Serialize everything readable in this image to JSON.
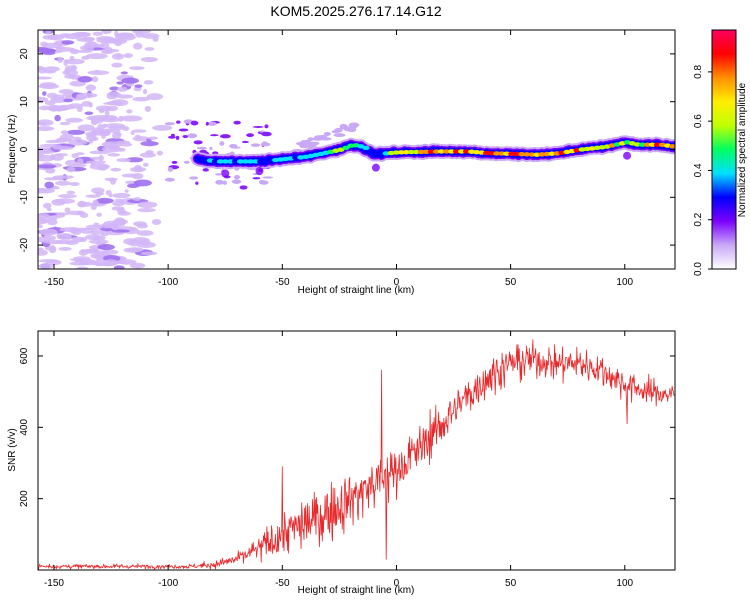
{
  "title": "KOM5.2025.276.17.14.G12",
  "chart_data": [
    {
      "type": "heatmap",
      "xlabel": "Height of straight line (km)",
      "ylabel": "Frequency (Hz)",
      "xlim": [
        -157,
        122
      ],
      "ylim": [
        -25,
        25
      ],
      "xticks": [
        -150,
        -100,
        -50,
        0,
        50,
        100
      ],
      "xtick_labels": [
        "-150",
        "-100",
        "-50",
        "0",
        "50",
        "100"
      ],
      "yticks": [
        -20,
        -10,
        0,
        10,
        20
      ],
      "ytick_labels": [
        "-20",
        "-10",
        "0",
        "10",
        "20"
      ],
      "colorbar": {
        "label": "Normalized spectral amplitude",
        "range": [
          0,
          0.97
        ],
        "ticks": [
          0,
          0.2,
          0.4,
          0.6,
          0.8
        ],
        "tick_labels": [
          "0.0",
          "0.2",
          "0.4",
          "0.6",
          "0.8"
        ],
        "colors": [
          "#ffffff",
          "#c9a8f5",
          "#7a00ff",
          "#0000ff",
          "#00e0ff",
          "#00ff60",
          "#c0ff00",
          "#ffee00",
          "#ff9000",
          "#ff0000",
          "#ff0060"
        ]
      },
      "signal_ridge": {
        "x": [
          -87,
          -80,
          -70,
          -60,
          -50,
          -40,
          -30,
          -25,
          -20,
          -15,
          -10,
          -5,
          0,
          10,
          20,
          30,
          40,
          50,
          60,
          70,
          80,
          90,
          100,
          105,
          110,
          115,
          122
        ],
        "y": [
          -2.0,
          -2.5,
          -2.5,
          -2.5,
          -2.0,
          -1.5,
          -0.5,
          0.0,
          1.0,
          0.5,
          -1.0,
          -0.8,
          -0.6,
          -0.5,
          -0.4,
          -0.4,
          -0.8,
          -0.9,
          -1.1,
          -0.8,
          0.0,
          0.5,
          1.5,
          1.0,
          1.0,
          1.0,
          0.5
        ],
        "peak_amplitude": [
          0.3,
          0.4,
          0.4,
          0.35,
          0.4,
          0.35,
          0.45,
          0.6,
          0.55,
          0.35,
          0.3,
          0.45,
          0.65,
          0.75,
          0.8,
          0.85,
          0.85,
          0.9,
          0.95,
          0.8,
          0.75,
          0.7,
          0.6,
          0.55,
          0.8,
          0.9,
          0.7
        ]
      },
      "noise_region_x": [
        -157,
        -100
      ],
      "noise_amplitude": 0.12
    },
    {
      "type": "line",
      "xlabel": "Height of straight line (km)",
      "ylabel": "SNR (v/v)",
      "xlim": [
        -157,
        122
      ],
      "ylim": [
        0,
        670
      ],
      "xticks": [
        -150,
        -100,
        -50,
        0,
        50,
        100
      ],
      "xtick_labels": [
        "-150",
        "-100",
        "-50",
        "0",
        "50",
        "100"
      ],
      "yticks": [
        200,
        400,
        600
      ],
      "ytick_labels": [
        "200",
        "400",
        "600"
      ],
      "color": "#e8282a",
      "trend": {
        "x": [
          -157,
          -120,
          -90,
          -80,
          -70,
          -60,
          -50,
          -40,
          -30,
          -20,
          -10,
          -5,
          0,
          10,
          20,
          30,
          40,
          50,
          60,
          70,
          80,
          90,
          100,
          110,
          122
        ],
        "y": [
          10,
          10,
          10,
          15,
          30,
          60,
          100,
          130,
          160,
          200,
          240,
          260,
          280,
          340,
          410,
          480,
          540,
          580,
          590,
          580,
          580,
          560,
          520,
          500,
          490
        ]
      },
      "noise_std": {
        "x": [
          -157,
          -90,
          -70,
          -50,
          -30,
          -10,
          10,
          40,
          60,
          90,
          122
        ],
        "y": [
          4,
          4,
          10,
          40,
          50,
          50,
          40,
          35,
          30,
          30,
          20
        ]
      },
      "spikes": [
        {
          "x": -6.5,
          "y": 560
        },
        {
          "x": -4.5,
          "y": 30
        },
        {
          "x": -50,
          "y": 290
        },
        {
          "x": 101,
          "y": 410
        }
      ]
    }
  ]
}
